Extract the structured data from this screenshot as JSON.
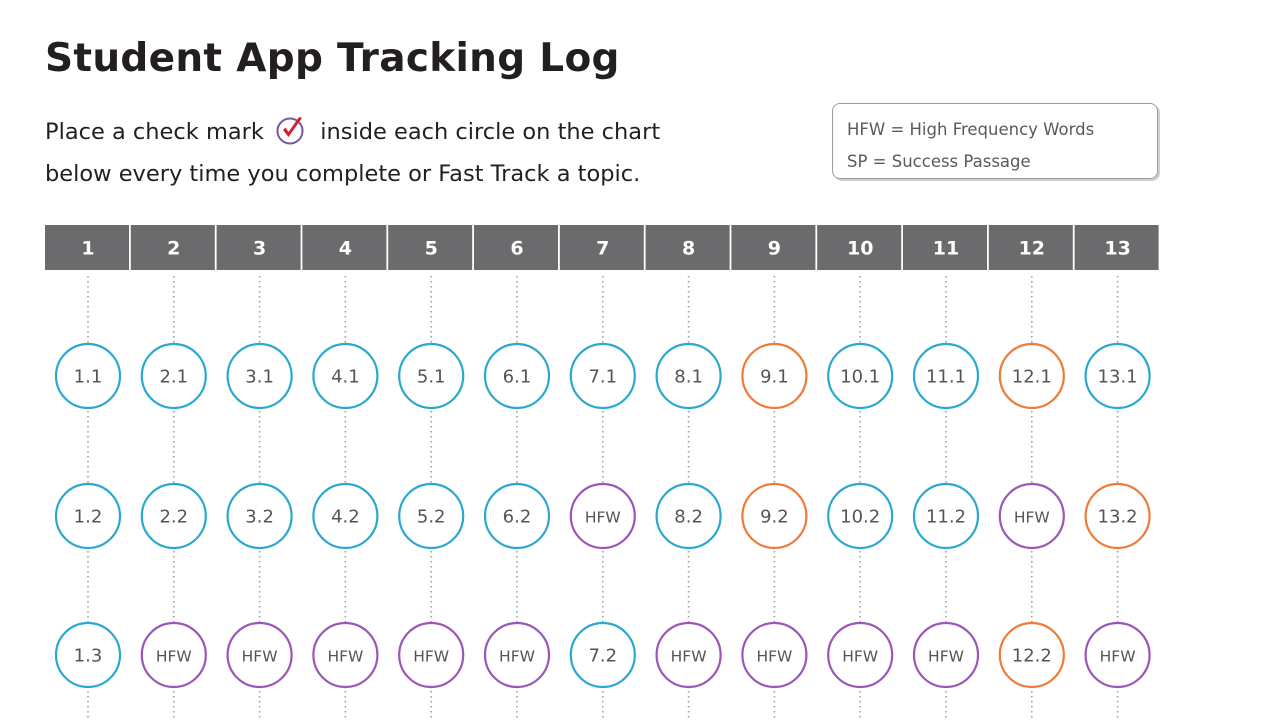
{
  "title": "Student App Tracking Log",
  "instructions": {
    "before_icon": "Place a check mark",
    "after_icon": "inside each circle on the chart",
    "line2": "below every time you complete or Fast Track a topic."
  },
  "icons": {
    "check": "check-mark-in-circle-icon"
  },
  "legend": {
    "items": [
      "HFW = High Frequency Words",
      "SP = Success Passage"
    ]
  },
  "colors": {
    "header_bg": "#6b6b6d",
    "header_text": "#ffffff",
    "blue": "#2aa8d0",
    "purple": "#9a57b8",
    "orange": "#ee7b3a",
    "check_red": "#d32030",
    "check_ring": "#7a55a0"
  },
  "columns": [
    {
      "label": "1",
      "circles": [
        {
          "text": "1.1",
          "color": "blue"
        },
        {
          "text": "1.2",
          "color": "blue"
        },
        {
          "text": "1.3",
          "color": "blue"
        }
      ]
    },
    {
      "label": "2",
      "circles": [
        {
          "text": "2.1",
          "color": "blue"
        },
        {
          "text": "2.2",
          "color": "blue"
        },
        {
          "text": "HFW",
          "color": "purple"
        }
      ]
    },
    {
      "label": "3",
      "circles": [
        {
          "text": "3.1",
          "color": "blue"
        },
        {
          "text": "3.2",
          "color": "blue"
        },
        {
          "text": "HFW",
          "color": "purple"
        }
      ]
    },
    {
      "label": "4",
      "circles": [
        {
          "text": "4.1",
          "color": "blue"
        },
        {
          "text": "4.2",
          "color": "blue"
        },
        {
          "text": "HFW",
          "color": "purple"
        }
      ]
    },
    {
      "label": "5",
      "circles": [
        {
          "text": "5.1",
          "color": "blue"
        },
        {
          "text": "5.2",
          "color": "blue"
        },
        {
          "text": "HFW",
          "color": "purple"
        }
      ]
    },
    {
      "label": "6",
      "circles": [
        {
          "text": "6.1",
          "color": "blue"
        },
        {
          "text": "6.2",
          "color": "blue"
        },
        {
          "text": "HFW",
          "color": "purple"
        }
      ]
    },
    {
      "label": "7",
      "circles": [
        {
          "text": "7.1",
          "color": "blue"
        },
        {
          "text": "HFW",
          "color": "purple"
        },
        {
          "text": "7.2",
          "color": "blue"
        }
      ]
    },
    {
      "label": "8",
      "circles": [
        {
          "text": "8.1",
          "color": "blue"
        },
        {
          "text": "8.2",
          "color": "blue"
        },
        {
          "text": "HFW",
          "color": "purple"
        }
      ]
    },
    {
      "label": "9",
      "circles": [
        {
          "text": "9.1",
          "color": "orange"
        },
        {
          "text": "9.2",
          "color": "orange"
        },
        {
          "text": "HFW",
          "color": "purple"
        }
      ]
    },
    {
      "label": "10",
      "circles": [
        {
          "text": "10.1",
          "color": "blue"
        },
        {
          "text": "10.2",
          "color": "blue"
        },
        {
          "text": "HFW",
          "color": "purple"
        }
      ]
    },
    {
      "label": "11",
      "circles": [
        {
          "text": "11.1",
          "color": "blue"
        },
        {
          "text": "11.2",
          "color": "blue"
        },
        {
          "text": "HFW",
          "color": "purple"
        }
      ]
    },
    {
      "label": "12",
      "circles": [
        {
          "text": "12.1",
          "color": "orange"
        },
        {
          "text": "HFW",
          "color": "purple"
        },
        {
          "text": "12.2",
          "color": "orange"
        }
      ]
    },
    {
      "label": "13",
      "circles": [
        {
          "text": "13.1",
          "color": "blue"
        },
        {
          "text": "13.2",
          "color": "orange"
        },
        {
          "text": "HFW",
          "color": "purple"
        }
      ]
    }
  ]
}
